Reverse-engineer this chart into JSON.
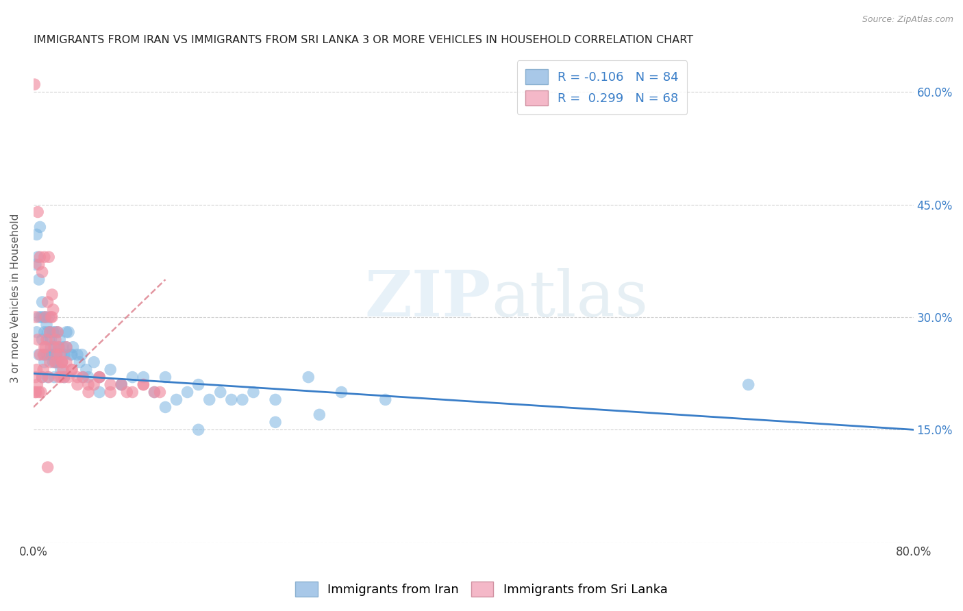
{
  "title": "IMMIGRANTS FROM IRAN VS IMMIGRANTS FROM SRI LANKA 3 OR MORE VEHICLES IN HOUSEHOLD CORRELATION CHART",
  "source": "Source: ZipAtlas.com",
  "ylabel": "3 or more Vehicles in Household",
  "xlim": [
    0.0,
    80.0
  ],
  "ylim": [
    0.0,
    65.0
  ],
  "watermark_zip": "ZIP",
  "watermark_atlas": "atlas",
  "legend_iran_color": "#a8c8e8",
  "legend_srilanka_color": "#f4b8c8",
  "iran_R": "-0.106",
  "iran_N": "84",
  "srilanka_R": "0.299",
  "srilanka_N": "68",
  "iran_scatter_color": "#7ab3e0",
  "srilanka_scatter_color": "#f08ca0",
  "iran_line_color": "#3a7ec8",
  "srilanka_line_color": "#d46070",
  "background_color": "#ffffff",
  "grid_color": "#cccccc",
  "iran_line_x0": 0.0,
  "iran_line_y0": 22.5,
  "iran_line_x1": 80.0,
  "iran_line_y1": 15.0,
  "srilanka_line_x0": 0.0,
  "srilanka_line_y0": 18.0,
  "srilanka_line_x1": 12.0,
  "srilanka_line_y1": 35.0,
  "iran_x": [
    0.2,
    0.3,
    0.4,
    0.5,
    0.5,
    0.6,
    0.7,
    0.8,
    0.8,
    0.9,
    1.0,
    1.0,
    1.1,
    1.2,
    1.2,
    1.3,
    1.4,
    1.4,
    1.5,
    1.5,
    1.6,
    1.7,
    1.8,
    1.8,
    1.9,
    2.0,
    2.0,
    2.1,
    2.2,
    2.3,
    2.4,
    2.5,
    2.6,
    2.7,
    2.8,
    3.0,
    3.0,
    3.2,
    3.4,
    3.6,
    4.0,
    4.2,
    4.4,
    4.8,
    5.0,
    5.5,
    6.0,
    7.0,
    8.0,
    9.0,
    10.0,
    11.0,
    12.0,
    13.0,
    14.0,
    15.0,
    16.0,
    17.0,
    18.0,
    20.0,
    22.0,
    25.0,
    28.0,
    65.0,
    0.3,
    0.5,
    0.8,
    1.0,
    1.3,
    1.6,
    1.9,
    2.2,
    2.5,
    2.8,
    3.5,
    4.5,
    6.0,
    8.0,
    12.0,
    15.0,
    19.0,
    22.0,
    26.0,
    32.0
  ],
  "iran_y": [
    37.0,
    41.0,
    38.0,
    35.0,
    30.0,
    42.0,
    30.0,
    32.0,
    27.0,
    30.0,
    28.0,
    25.0,
    30.0,
    29.0,
    25.0,
    28.0,
    27.0,
    30.0,
    25.0,
    28.0,
    27.0,
    25.0,
    28.0,
    24.0,
    26.0,
    28.0,
    24.0,
    25.0,
    28.0,
    26.0,
    27.0,
    25.0,
    24.0,
    26.0,
    25.0,
    28.0,
    26.0,
    28.0,
    25.0,
    26.0,
    25.0,
    24.0,
    25.0,
    23.0,
    22.0,
    24.0,
    22.0,
    23.0,
    21.0,
    22.0,
    22.0,
    20.0,
    22.0,
    19.0,
    20.0,
    21.0,
    19.0,
    20.0,
    19.0,
    20.0,
    19.0,
    22.0,
    20.0,
    21.0,
    28.0,
    25.0,
    22.0,
    24.0,
    22.0,
    26.0,
    22.0,
    24.0,
    23.0,
    22.0,
    25.0,
    22.0,
    20.0,
    21.0,
    18.0,
    15.0,
    19.0,
    16.0,
    17.0,
    19.0
  ],
  "srilanka_x": [
    0.1,
    0.15,
    0.2,
    0.25,
    0.3,
    0.35,
    0.4,
    0.5,
    0.5,
    0.6,
    0.7,
    0.8,
    0.8,
    0.9,
    1.0,
    1.0,
    1.1,
    1.2,
    1.3,
    1.4,
    1.5,
    1.5,
    1.6,
    1.7,
    1.8,
    1.9,
    2.0,
    2.1,
    2.2,
    2.3,
    2.4,
    2.5,
    2.6,
    2.7,
    2.8,
    3.0,
    3.2,
    3.5,
    4.0,
    4.5,
    5.0,
    5.5,
    6.0,
    7.0,
    8.0,
    9.0,
    10.0,
    11.0,
    0.2,
    0.4,
    0.6,
    0.9,
    1.1,
    1.4,
    1.7,
    2.0,
    2.3,
    2.6,
    3.0,
    3.5,
    4.0,
    5.0,
    6.0,
    7.0,
    8.5,
    10.0,
    11.5,
    1.3
  ],
  "srilanka_y": [
    61.0,
    20.0,
    22.0,
    20.0,
    23.0,
    21.0,
    44.0,
    37.0,
    20.0,
    38.0,
    20.0,
    36.0,
    22.0,
    25.0,
    26.0,
    38.0,
    30.0,
    27.0,
    32.0,
    38.0,
    28.0,
    24.0,
    30.0,
    33.0,
    31.0,
    26.0,
    27.0,
    25.0,
    28.0,
    26.0,
    25.0,
    22.0,
    24.0,
    23.0,
    22.0,
    24.0,
    22.0,
    23.0,
    21.0,
    22.0,
    20.0,
    21.0,
    22.0,
    20.0,
    21.0,
    20.0,
    21.0,
    20.0,
    30.0,
    27.0,
    25.0,
    23.0,
    26.0,
    22.0,
    30.0,
    24.0,
    22.0,
    24.0,
    26.0,
    23.0,
    22.0,
    21.0,
    22.0,
    21.0,
    20.0,
    21.0,
    20.0,
    10.0
  ]
}
